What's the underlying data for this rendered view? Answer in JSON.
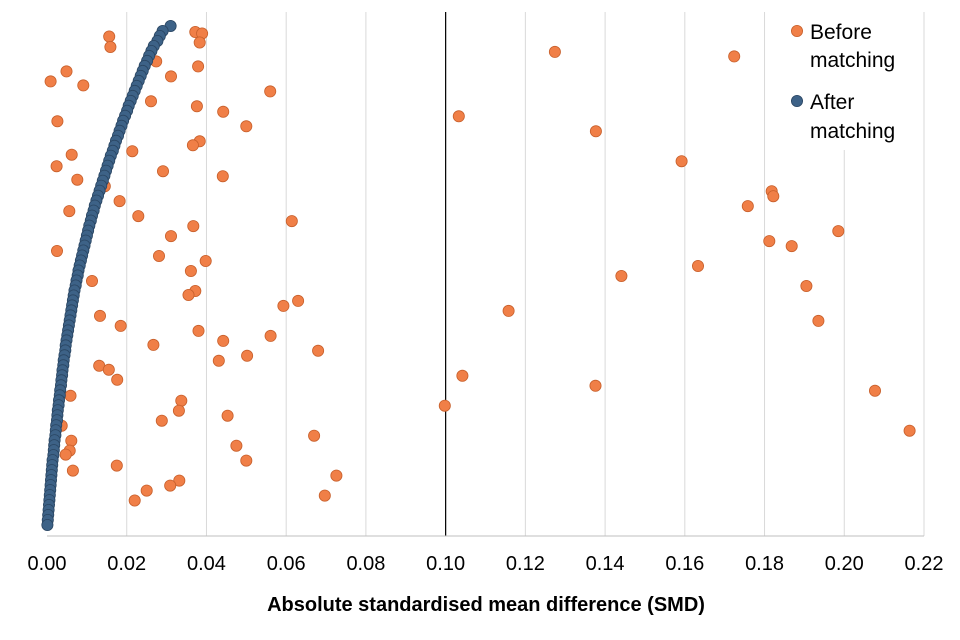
{
  "chart_data": {
    "type": "scatter",
    "title": "",
    "xlabel": "Absolute standardised mean difference (SMD)",
    "ylabel": "",
    "xlim": [
      0,
      0.22
    ],
    "ylim": [
      0,
      100
    ],
    "xticks": [
      "0.00",
      "0.02",
      "0.04",
      "0.06",
      "0.08",
      "0.10",
      "0.12",
      "0.14",
      "0.16",
      "0.18",
      "0.20",
      "0.22"
    ],
    "grid": true,
    "threshold": 0.1,
    "legend_position": "top-right",
    "series": [
      {
        "name": "Before matching",
        "color": "#F07F47",
        "points": [
          [
            0.0372,
            98.8
          ],
          [
            0.0389,
            98.5
          ],
          [
            0.0156,
            97.9
          ],
          [
            0.0383,
            96.7
          ],
          [
            0.0159,
            95.8
          ],
          [
            0.1274,
            94.8
          ],
          [
            0.1724,
            93.9
          ],
          [
            0.0274,
            92.9
          ],
          [
            0.0379,
            91.9
          ],
          [
            0.0049,
            90.9
          ],
          [
            0.0311,
            89.9
          ],
          [
            0.0009,
            88.9
          ],
          [
            0.0091,
            88.1
          ],
          [
            0.056,
            86.9
          ],
          [
            0.0261,
            84.9
          ],
          [
            0.0376,
            83.9
          ],
          [
            0.0442,
            82.8
          ],
          [
            0.1033,
            81.9
          ],
          [
            0.0026,
            80.9
          ],
          [
            0.05,
            79.9
          ],
          [
            0.1377,
            78.9
          ],
          [
            0.0383,
            76.9
          ],
          [
            0.0366,
            76.1
          ],
          [
            0.0214,
            74.9
          ],
          [
            0.0062,
            74.2
          ],
          [
            0.1592,
            72.9
          ],
          [
            0.0024,
            71.9
          ],
          [
            0.0291,
            70.9
          ],
          [
            0.0441,
            69.9
          ],
          [
            0.0076,
            69.2
          ],
          [
            0.0145,
            67.9
          ],
          [
            0.1818,
            66.9
          ],
          [
            0.1822,
            65.9
          ],
          [
            0.0182,
            64.9
          ],
          [
            0.1758,
            63.9
          ],
          [
            0.0056,
            62.9
          ],
          [
            0.0229,
            61.9
          ],
          [
            0.0614,
            60.9
          ],
          [
            0.0367,
            59.9
          ],
          [
            0.1985,
            58.9
          ],
          [
            0.0311,
            57.9
          ],
          [
            0.1812,
            56.9
          ],
          [
            0.1868,
            55.9
          ],
          [
            0.0025,
            54.9
          ],
          [
            0.0281,
            53.9
          ],
          [
            0.0398,
            52.9
          ],
          [
            0.1633,
            51.9
          ],
          [
            0.0361,
            50.9
          ],
          [
            0.1441,
            49.9
          ],
          [
            0.0113,
            48.9
          ],
          [
            0.1905,
            47.9
          ],
          [
            0.0372,
            46.9
          ],
          [
            0.0355,
            46.1
          ],
          [
            0.063,
            44.9
          ],
          [
            0.0593,
            43.9
          ],
          [
            0.1158,
            42.9
          ],
          [
            0.0133,
            41.9
          ],
          [
            0.1935,
            40.9
          ],
          [
            0.0185,
            39.9
          ],
          [
            0.038,
            38.9
          ],
          [
            0.0561,
            37.9
          ],
          [
            0.0442,
            36.9
          ],
          [
            0.0267,
            36.1
          ],
          [
            0.068,
            34.9
          ],
          [
            0.0502,
            33.9
          ],
          [
            0.0431,
            32.9
          ],
          [
            0.0131,
            31.9
          ],
          [
            0.0155,
            31.1
          ],
          [
            0.1042,
            29.9
          ],
          [
            0.0176,
            29.1
          ],
          [
            0.1376,
            27.9
          ],
          [
            0.2077,
            26.9
          ],
          [
            0.0059,
            25.9
          ],
          [
            0.0337,
            24.9
          ],
          [
            0.0998,
            23.9
          ],
          [
            0.0331,
            22.9
          ],
          [
            0.0453,
            21.9
          ],
          [
            0.0288,
            20.9
          ],
          [
            0.0037,
            19.9
          ],
          [
            0.2164,
            18.9
          ],
          [
            0.067,
            17.9
          ],
          [
            0.0061,
            16.9
          ],
          [
            0.0475,
            15.9
          ],
          [
            0.0057,
            14.9
          ],
          [
            0.0047,
            14.1
          ],
          [
            0.05,
            12.9
          ],
          [
            0.0175,
            11.9
          ],
          [
            0.0065,
            10.9
          ],
          [
            0.0726,
            9.9
          ],
          [
            0.0332,
            8.9
          ],
          [
            0.0309,
            7.9
          ],
          [
            0.025,
            6.9
          ],
          [
            0.0697,
            5.9
          ],
          [
            0.022,
            4.9
          ]
        ]
      },
      {
        "name": "After matching",
        "color": "#3D6287",
        "points": [
          [
            0.031,
            100
          ],
          [
            0.029,
            99
          ],
          [
            0.0283,
            98
          ],
          [
            0.0277,
            97
          ],
          [
            0.0268,
            96
          ],
          [
            0.0262,
            95
          ],
          [
            0.0256,
            94
          ],
          [
            0.0251,
            93
          ],
          [
            0.0245,
            92
          ],
          [
            0.024,
            91
          ],
          [
            0.0235,
            90
          ],
          [
            0.023,
            89
          ],
          [
            0.0225,
            88
          ],
          [
            0.022,
            87
          ],
          [
            0.0215,
            86
          ],
          [
            0.021,
            85
          ],
          [
            0.0205,
            84
          ],
          [
            0.0201,
            83
          ],
          [
            0.0196,
            82
          ],
          [
            0.0191,
            81
          ],
          [
            0.0187,
            80
          ],
          [
            0.0182,
            79
          ],
          [
            0.0178,
            78
          ],
          [
            0.0173,
            77
          ],
          [
            0.0169,
            76
          ],
          [
            0.0165,
            75
          ],
          [
            0.016,
            74
          ],
          [
            0.0156,
            73
          ],
          [
            0.0152,
            72
          ],
          [
            0.0148,
            71
          ],
          [
            0.0144,
            70
          ],
          [
            0.014,
            69
          ],
          [
            0.0136,
            68
          ],
          [
            0.0132,
            67
          ],
          [
            0.0128,
            66
          ],
          [
            0.0124,
            65
          ],
          [
            0.012,
            64
          ],
          [
            0.0117,
            63
          ],
          [
            0.0113,
            62
          ],
          [
            0.011,
            61
          ],
          [
            0.0106,
            60
          ],
          [
            0.0103,
            59
          ],
          [
            0.01,
            58
          ],
          [
            0.0097,
            57
          ],
          [
            0.0094,
            56
          ],
          [
            0.0091,
            55
          ],
          [
            0.0088,
            54
          ],
          [
            0.0085,
            53
          ],
          [
            0.0082,
            52
          ],
          [
            0.0079,
            51
          ],
          [
            0.0077,
            50
          ],
          [
            0.0074,
            49
          ],
          [
            0.0072,
            48
          ],
          [
            0.0069,
            47
          ],
          [
            0.0067,
            46
          ],
          [
            0.0065,
            45
          ],
          [
            0.0063,
            44
          ],
          [
            0.0061,
            43
          ],
          [
            0.0059,
            42
          ],
          [
            0.0057,
            41
          ],
          [
            0.0055,
            40
          ],
          [
            0.0053,
            39
          ],
          [
            0.0051,
            38
          ],
          [
            0.0049,
            37
          ],
          [
            0.0047,
            36
          ],
          [
            0.0046,
            35
          ],
          [
            0.0044,
            34
          ],
          [
            0.0042,
            33
          ],
          [
            0.0041,
            32
          ],
          [
            0.0039,
            31
          ],
          [
            0.0038,
            30
          ],
          [
            0.0036,
            29
          ],
          [
            0.0035,
            28
          ],
          [
            0.0033,
            27
          ],
          [
            0.0032,
            26
          ],
          [
            0.003,
            25
          ],
          [
            0.0029,
            24
          ],
          [
            0.0027,
            23
          ],
          [
            0.0026,
            22
          ],
          [
            0.0025,
            21
          ],
          [
            0.0023,
            20
          ],
          [
            0.0022,
            19
          ],
          [
            0.0021,
            18
          ],
          [
            0.0019,
            17
          ],
          [
            0.0018,
            16
          ],
          [
            0.0017,
            15
          ],
          [
            0.0016,
            14
          ],
          [
            0.0014,
            13
          ],
          [
            0.0013,
            12
          ],
          [
            0.0012,
            11
          ],
          [
            0.0011,
            10
          ],
          [
            0.001,
            9
          ],
          [
            0.0009,
            8
          ],
          [
            0.0008,
            7
          ],
          [
            0.0007,
            6
          ],
          [
            0.0006,
            5
          ],
          [
            0.0005,
            4
          ],
          [
            0.0004,
            3
          ],
          [
            0.0003,
            2
          ],
          [
            0.0002,
            1
          ],
          [
            0.0001,
            0
          ]
        ]
      }
    ]
  }
}
